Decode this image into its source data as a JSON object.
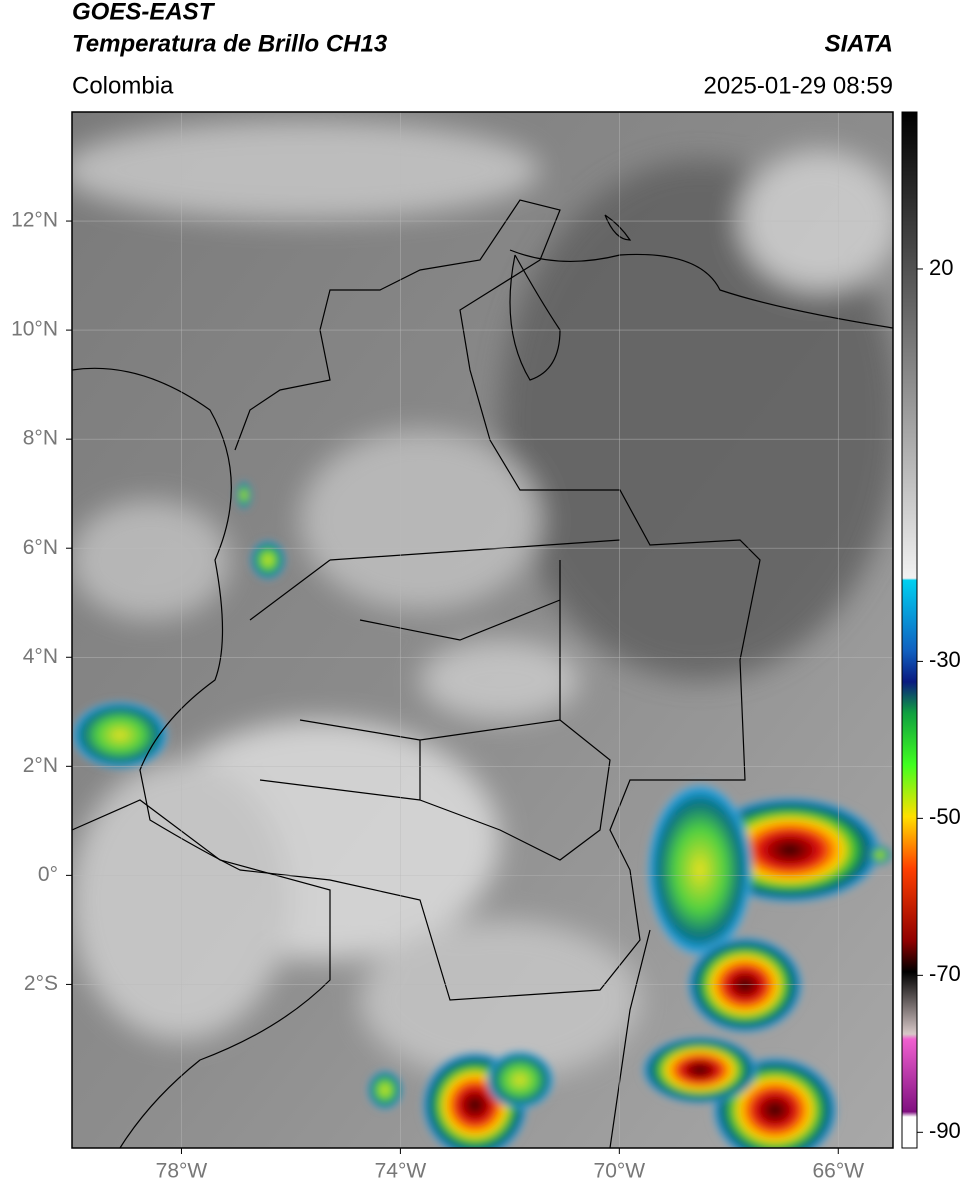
{
  "header": {
    "title": "GOES-EAST",
    "subtitle": "Temperatura de Brillo CH13",
    "source": "SIATA",
    "region": "Colombia",
    "datetime": "2025-01-29 08:59"
  },
  "map": {
    "lonlim": [
      -80,
      -65
    ],
    "latlim": [
      -5,
      14
    ],
    "lat_ticks": [
      {
        "value": 12,
        "label": "12°N"
      },
      {
        "value": 10,
        "label": "10°N"
      },
      {
        "value": 8,
        "label": "8°N"
      },
      {
        "value": 6,
        "label": "6°N"
      },
      {
        "value": 4,
        "label": "4°N"
      },
      {
        "value": 2,
        "label": "2°N"
      },
      {
        "value": 0,
        "label": "0°"
      },
      {
        "value": -2,
        "label": "2°S"
      }
    ],
    "lon_ticks": [
      {
        "value": -78,
        "label": "78°W"
      },
      {
        "value": -74,
        "label": "74°W"
      },
      {
        "value": -70,
        "label": "70°W"
      },
      {
        "value": -66,
        "label": "66°W"
      }
    ],
    "grid": true
  },
  "colorbar": {
    "lim": [
      -92,
      40
    ],
    "ticks": [
      20,
      -30,
      -50,
      -70,
      -90
    ]
  }
}
